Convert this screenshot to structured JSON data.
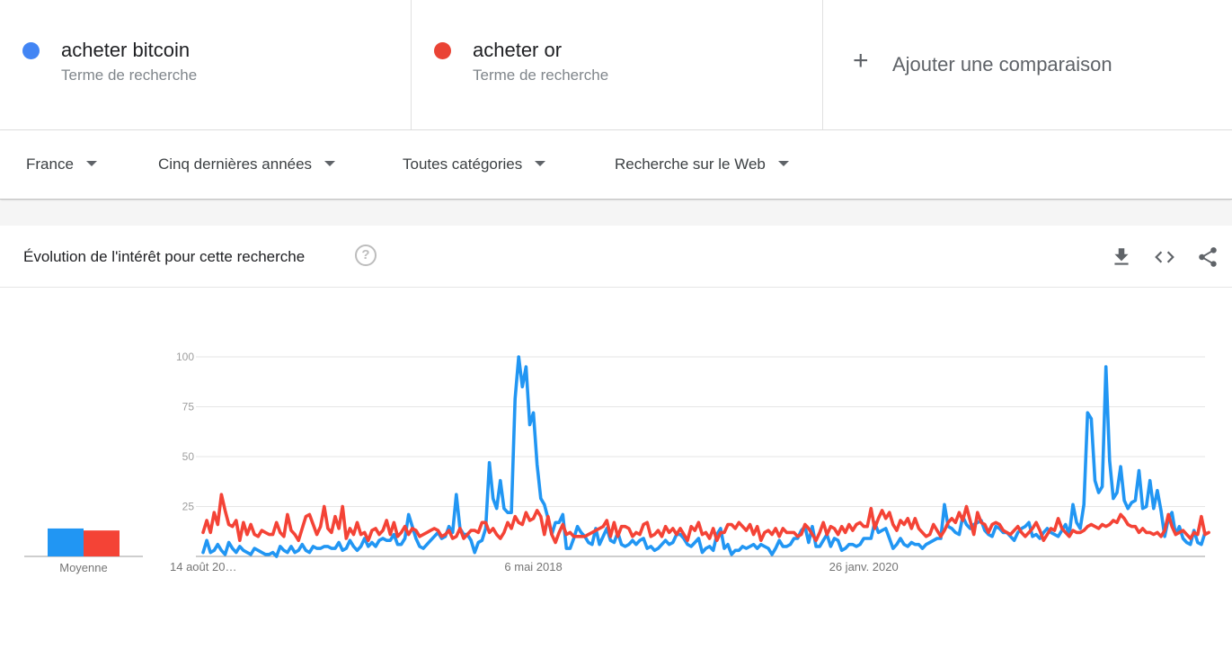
{
  "terms": [
    {
      "name": "acheter bitcoin",
      "kind": "Terme de recherche",
      "color": "#4285f4"
    },
    {
      "name": "acheter or",
      "kind": "Terme de recherche",
      "color": "#ea4335"
    }
  ],
  "add_comparison": {
    "label": "Ajouter une comparaison",
    "icon": "plus-icon"
  },
  "filters": {
    "region": "France",
    "period": "Cinq dernières années",
    "category": "Toutes catégories",
    "search_type": "Recherche sur le Web"
  },
  "card": {
    "title": "Évolution de l'intérêt pour cette recherche",
    "tools": [
      "download-icon",
      "embed-code-icon",
      "share-icon"
    ]
  },
  "chart_data": {
    "type": "line",
    "title": "",
    "xlabel": "",
    "ylabel": "",
    "ylim": [
      0,
      100
    ],
    "y_ticks": [
      25,
      50,
      75,
      100
    ],
    "x_tick_labels": [
      {
        "label": "14 août 20…",
        "index": 0
      },
      {
        "label": "6 mai 2018",
        "index": 90
      },
      {
        "label": "26 janv. 2020",
        "index": 180
      }
    ],
    "grid": true,
    "averages": {
      "label": "Moyenne",
      "values": [
        {
          "name": "acheter bitcoin",
          "value": 14,
          "color": "#2196f3"
        },
        {
          "name": "acheter or",
          "value": 13,
          "color": "#f44336"
        }
      ]
    },
    "series": [
      {
        "name": "acheter bitcoin",
        "color": "#2196f3",
        "values": [
          2,
          8,
          2,
          3,
          6,
          3,
          1,
          7,
          4,
          2,
          5,
          3,
          2,
          1,
          4,
          3,
          2,
          1,
          1,
          2,
          0,
          5,
          3,
          2,
          5,
          2,
          3,
          6,
          3,
          2,
          5,
          4,
          4,
          5,
          5,
          4,
          4,
          7,
          3,
          4,
          8,
          5,
          3,
          5,
          9,
          5,
          7,
          5,
          8,
          9,
          8,
          8,
          11,
          6,
          6,
          9,
          21,
          15,
          9,
          5,
          4,
          6,
          8,
          10,
          12,
          9,
          10,
          15,
          12,
          31,
          14,
          11,
          11,
          8,
          2,
          7,
          8,
          14,
          47,
          29,
          24,
          38,
          24,
          22,
          22,
          79,
          100,
          85,
          95,
          66,
          72,
          46,
          29,
          26,
          19,
          11,
          17,
          17,
          21,
          4,
          4,
          9,
          15,
          12,
          10,
          7,
          6,
          14,
          6,
          10,
          14,
          8,
          7,
          12,
          6,
          5,
          6,
          8,
          6,
          8,
          9,
          4,
          5,
          3,
          4,
          6,
          8,
          6,
          7,
          11,
          11,
          9,
          6,
          5,
          7,
          9,
          2,
          4,
          5,
          3,
          11,
          14,
          4,
          6,
          1,
          3,
          3,
          5,
          4,
          5,
          6,
          4,
          6,
          5,
          4,
          1,
          4,
          8,
          5,
          5,
          6,
          9,
          9,
          13,
          15,
          7,
          15,
          5,
          5,
          8,
          11,
          5,
          9,
          8,
          3,
          4,
          6,
          6,
          5,
          6,
          9,
          9,
          9,
          17,
          12,
          13,
          14,
          9,
          4,
          6,
          9,
          6,
          5,
          7,
          6,
          6,
          4,
          6,
          7,
          8,
          9,
          9,
          26,
          15,
          14,
          12,
          11,
          20,
          16,
          14,
          16,
          17,
          18,
          13,
          11,
          10,
          15,
          14,
          12,
          12,
          10,
          8,
          12,
          14,
          15,
          17,
          10,
          11,
          9,
          12,
          14,
          12,
          11,
          10,
          13,
          16,
          11,
          26,
          17,
          14,
          26,
          72,
          69,
          38,
          32,
          35,
          95,
          48,
          29,
          32,
          45,
          28,
          24,
          27,
          28,
          43,
          24,
          25,
          38,
          24,
          33,
          23,
          10,
          19,
          22,
          11,
          15,
          9,
          7,
          6,
          13,
          7,
          6,
          12
        ]
      },
      {
        "name": "acheter or",
        "color": "#f44336",
        "values": [
          12,
          18,
          12,
          22,
          16,
          31,
          23,
          16,
          15,
          18,
          8,
          17,
          11,
          16,
          11,
          10,
          13,
          12,
          11,
          11,
          17,
          12,
          10,
          21,
          13,
          11,
          8,
          14,
          20,
          21,
          16,
          11,
          15,
          25,
          14,
          12,
          20,
          14,
          25,
          9,
          14,
          11,
          17,
          11,
          12,
          8,
          13,
          14,
          11,
          13,
          18,
          11,
          17,
          10,
          12,
          15,
          11,
          14,
          13,
          10,
          11,
          12,
          13,
          14,
          13,
          10,
          11,
          13,
          9,
          10,
          14,
          9,
          11,
          13,
          13,
          12,
          17,
          17,
          12,
          14,
          11,
          9,
          12,
          17,
          14,
          20,
          17,
          16,
          22,
          18,
          19,
          23,
          20,
          11,
          20,
          11,
          7,
          12,
          16,
          11,
          12,
          10,
          10,
          10,
          10,
          11,
          12,
          13,
          14,
          15,
          18,
          10,
          17,
          10,
          15,
          15,
          14,
          10,
          12,
          11,
          16,
          17,
          10,
          11,
          13,
          10,
          15,
          12,
          14,
          11,
          14,
          11,
          8,
          15,
          13,
          17,
          11,
          12,
          9,
          14,
          8,
          12,
          12,
          16,
          16,
          14,
          17,
          15,
          13,
          16,
          11,
          15,
          8,
          12,
          13,
          11,
          14,
          10,
          14,
          12,
          12,
          12,
          10,
          11,
          16,
          14,
          11,
          8,
          12,
          17,
          11,
          15,
          14,
          11,
          15,
          12,
          16,
          13,
          16,
          17,
          15,
          15,
          24,
          14,
          19,
          23,
          19,
          22,
          16,
          13,
          18,
          16,
          19,
          14,
          19,
          14,
          12,
          10,
          11,
          16,
          13,
          10,
          13,
          17,
          19,
          17,
          22,
          18,
          25,
          18,
          11,
          22,
          17,
          16,
          12,
          16,
          17,
          16,
          13,
          12,
          11,
          13,
          15,
          12,
          10,
          12,
          14,
          17,
          13,
          8,
          11,
          14,
          13,
          19,
          14,
          12,
          10,
          13,
          12,
          12,
          13,
          15,
          16,
          15,
          14,
          16,
          15,
          16,
          18,
          17,
          21,
          19,
          16,
          15,
          15,
          12,
          14,
          12,
          12,
          11,
          12,
          10,
          13,
          21,
          15,
          11,
          12,
          13,
          11,
          9,
          12,
          11,
          20,
          11,
          12
        ]
      }
    ]
  }
}
